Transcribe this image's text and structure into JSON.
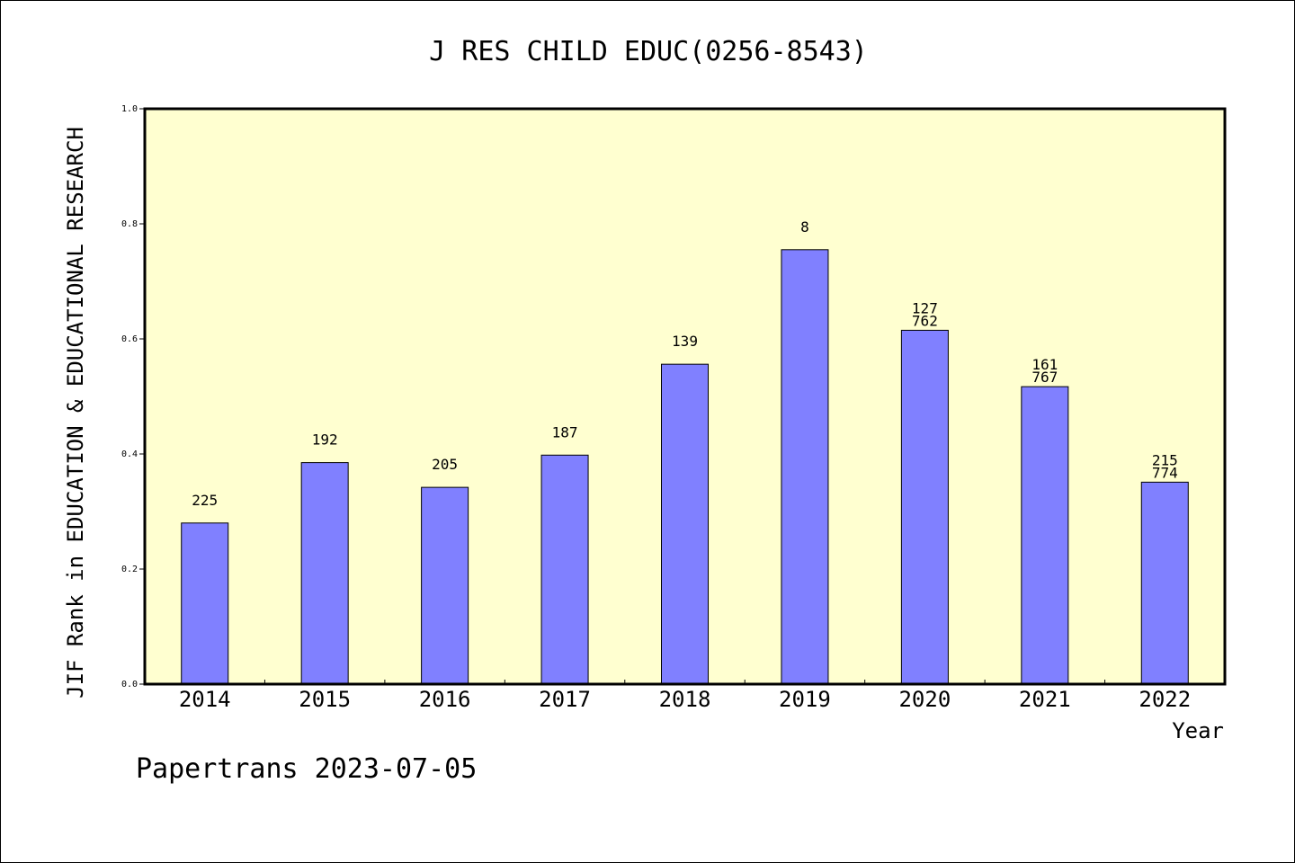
{
  "chart_data": {
    "type": "bar",
    "title": "J RES CHILD EDUC(0256-8543)",
    "xlabel": "Year",
    "ylabel": "JIF Rank in EDUCATION & EDUCATIONAL RESEARCH",
    "ylim": [
      0,
      1.0
    ],
    "yticks": [
      "0.0",
      "0.2",
      "0.4",
      "0.6",
      "0.8",
      "1.0"
    ],
    "categories": [
      "2014",
      "2015",
      "2016",
      "2017",
      "2018",
      "2019",
      "2020",
      "2021",
      "2022"
    ],
    "values": [
      0.28,
      0.385,
      0.342,
      0.398,
      0.556,
      0.755,
      0.615,
      0.517,
      0.351
    ],
    "labels": [
      [
        "225"
      ],
      [
        "192"
      ],
      [
        "205"
      ],
      [
        "187"
      ],
      [
        "139"
      ],
      [
        "8"
      ],
      [
        "127",
        "762"
      ],
      [
        "161",
        "767"
      ],
      [
        "215",
        "774"
      ]
    ],
    "bar_color": "#8080ff",
    "plot_background": "#ffffd0",
    "grid": false
  },
  "footer": "Papertrans 2023-07-05"
}
